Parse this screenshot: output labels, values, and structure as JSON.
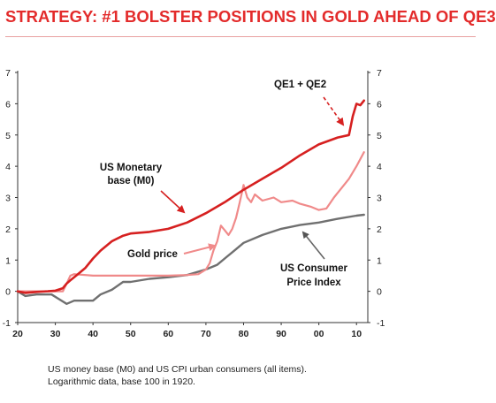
{
  "page": {
    "title": "STRATEGY: #1 BOLSTER POSITIONS IN GOLD AHEAD OF QE3",
    "footnote_line1": "US money base (M0) and US CPI urban consumers (all items).",
    "footnote_line2": "Logarithmic data, base 100 in 1920."
  },
  "colors": {
    "title": "#e32b2b",
    "monetary_base": "#d62020",
    "gold": "#f08a8a",
    "cpi": "#707070"
  },
  "chart_data": {
    "type": "line",
    "title": "STRATEGY: #1 BOLSTER POSITIONS IN GOLD AHEAD OF QE3",
    "xlabel": "",
    "ylabel": "",
    "xlim": [
      20,
      113
    ],
    "ylim": [
      -1,
      7
    ],
    "xticks": [
      "20",
      "30",
      "40",
      "50",
      "60",
      "70",
      "80",
      "90",
      "00",
      "10"
    ],
    "xtick_values": [
      20,
      30,
      40,
      50,
      60,
      70,
      80,
      90,
      100,
      110
    ],
    "yticks": [
      "-1",
      "0",
      "1",
      "2",
      "3",
      "4",
      "5",
      "6",
      "7"
    ],
    "ytick_values": [
      -1,
      0,
      1,
      2,
      3,
      4,
      5,
      6,
      7
    ],
    "grid": false,
    "annotations": [
      {
        "text_lines": [
          "QE1 + QE2"
        ],
        "arrow": "dashed"
      },
      {
        "text_lines": [
          "US Monetary",
          "base (M0)"
        ],
        "arrow": "solid"
      },
      {
        "text_lines": [
          "Gold price"
        ],
        "arrow": "solid"
      },
      {
        "text_lines": [
          "US Consumer",
          "Price Index"
        ],
        "arrow": "solid"
      }
    ],
    "series": [
      {
        "key": "monetary_base",
        "name": "US Monetary base (M0)",
        "x": [
          20,
          22,
          25,
          28,
          30,
          32,
          33,
          34,
          36,
          38,
          40,
          42,
          45,
          48,
          50,
          55,
          60,
          65,
          70,
          75,
          80,
          85,
          90,
          95,
          100,
          105,
          108,
          109,
          110,
          111,
          112
        ],
        "y": [
          0,
          -0.05,
          -0.02,
          0,
          0.02,
          0.1,
          0.25,
          0.35,
          0.55,
          0.75,
          1.05,
          1.3,
          1.6,
          1.78,
          1.85,
          1.9,
          2.0,
          2.2,
          2.5,
          2.85,
          3.25,
          3.6,
          3.95,
          4.35,
          4.7,
          4.92,
          5.0,
          5.6,
          6.0,
          5.95,
          6.1
        ]
      },
      {
        "key": "gold",
        "name": "Gold price",
        "x": [
          20,
          25,
          30,
          32,
          33,
          34,
          35,
          40,
          45,
          50,
          55,
          60,
          65,
          68,
          70,
          71,
          72,
          73,
          74,
          75,
          76,
          77,
          78,
          79,
          80,
          81,
          82,
          83,
          85,
          88,
          90,
          93,
          95,
          98,
          100,
          102,
          104,
          106,
          108,
          110,
          112
        ],
        "y": [
          0,
          0,
          0,
          0,
          0.25,
          0.5,
          0.55,
          0.5,
          0.5,
          0.5,
          0.5,
          0.5,
          0.52,
          0.55,
          0.7,
          0.9,
          1.3,
          1.6,
          2.1,
          1.95,
          1.8,
          2.0,
          2.35,
          2.85,
          3.4,
          3.0,
          2.85,
          3.1,
          2.9,
          3.0,
          2.85,
          2.9,
          2.8,
          2.7,
          2.6,
          2.65,
          3.0,
          3.3,
          3.6,
          4.0,
          4.45
        ]
      },
      {
        "key": "cpi",
        "name": "US Consumer Price Index",
        "x": [
          20,
          22,
          25,
          29,
          31,
          33,
          35,
          40,
          42,
          45,
          48,
          50,
          55,
          60,
          65,
          70,
          73,
          75,
          78,
          80,
          85,
          90,
          95,
          100,
          105,
          110,
          112
        ],
        "y": [
          0,
          -0.15,
          -0.1,
          -0.1,
          -0.25,
          -0.4,
          -0.3,
          -0.3,
          -0.1,
          0.05,
          0.3,
          0.3,
          0.4,
          0.45,
          0.52,
          0.7,
          0.85,
          1.05,
          1.35,
          1.55,
          1.8,
          2.0,
          2.12,
          2.2,
          2.32,
          2.42,
          2.45
        ]
      }
    ]
  }
}
